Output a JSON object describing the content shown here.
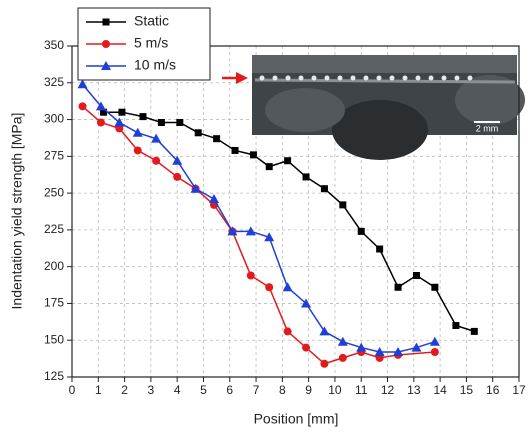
{
  "chart_data": {
    "type": "line",
    "x_label": "Position [mm]",
    "y_label": "Indentation yield strength [MPa]",
    "xlim": [
      0,
      17
    ],
    "ylim": [
      125,
      350
    ],
    "xticks": [
      0,
      1,
      2,
      3,
      4,
      5,
      6,
      7,
      8,
      9,
      10,
      11,
      12,
      13,
      14,
      15,
      16,
      17
    ],
    "yticks": [
      125,
      150,
      175,
      200,
      225,
      250,
      275,
      300,
      325,
      350
    ],
    "grid": true,
    "legend": "top-left",
    "inset_scale_label": "2 mm",
    "series": [
      {
        "name": "Static",
        "color": "#000000",
        "marker": "square",
        "x": [
          1.2,
          1.9,
          2.7,
          3.4,
          4.1,
          4.8,
          5.5,
          6.2,
          6.9,
          7.5,
          8.2,
          8.9,
          9.6,
          10.3,
          11.0,
          11.7,
          12.4,
          13.1,
          13.8,
          14.6,
          15.3
        ],
        "values": [
          305,
          305,
          302,
          298,
          298,
          291,
          287,
          279,
          276,
          268,
          272,
          261,
          253,
          242,
          224,
          212,
          186,
          194,
          186,
          160,
          156
        ]
      },
      {
        "name": "5 m/s",
        "color": "#e31a1c",
        "marker": "circle",
        "x": [
          0.4,
          1.1,
          1.8,
          2.5,
          3.2,
          4.0,
          4.7,
          5.4,
          6.1,
          6.8,
          7.5,
          8.2,
          8.9,
          9.6,
          10.3,
          11.0,
          11.7,
          12.4,
          13.8
        ],
        "values": [
          309,
          298,
          294,
          279,
          272,
          261,
          253,
          242,
          224,
          194,
          186,
          156,
          145,
          134,
          138,
          142,
          138,
          140,
          142
        ]
      },
      {
        "name": "10 m/s",
        "color": "#1f3fd6",
        "marker": "triangle",
        "x": [
          0.4,
          1.1,
          1.8,
          2.5,
          3.2,
          4.0,
          4.7,
          5.4,
          6.1,
          6.8,
          7.5,
          8.2,
          8.9,
          9.6,
          10.3,
          11.0,
          11.7,
          12.4,
          13.1,
          13.8
        ],
        "values": [
          324,
          309,
          298,
          291,
          287,
          272,
          253,
          246,
          224,
          224,
          220,
          186,
          175,
          156,
          149,
          145,
          142,
          142,
          145,
          149
        ]
      }
    ]
  }
}
